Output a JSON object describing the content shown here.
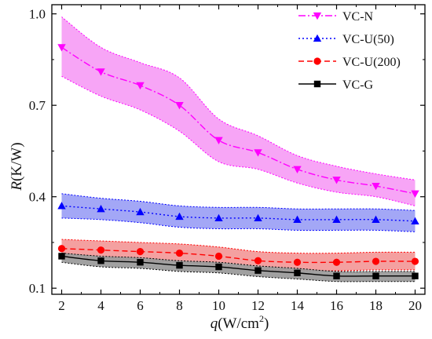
{
  "chart_data": {
    "type": "line",
    "x": [
      2,
      4,
      6,
      8,
      10,
      12,
      14,
      16,
      18,
      20
    ],
    "xlim": [
      1.5,
      20.5
    ],
    "ylim": [
      0.08,
      1.03
    ],
    "xticks": [
      2,
      4,
      6,
      8,
      10,
      12,
      14,
      16,
      18,
      20
    ],
    "yticks": [
      0.1,
      0.4,
      0.7,
      1.0
    ],
    "ytick_labels": [
      "0.1",
      "0.4",
      "0.7",
      "1.0"
    ],
    "xlabel": {
      "var": "q",
      "unit_pre": "(W/cm",
      "sup": "2",
      "unit_post": ")"
    },
    "ylabel": {
      "var": "R",
      "unit": "(K/W)"
    },
    "grid": false,
    "legend_position": "top-right",
    "series": [
      {
        "name": "VC-N",
        "color": "#ff00ff",
        "marker": "triangle-down",
        "line": "dash-dot",
        "values": [
          0.89,
          0.81,
          0.765,
          0.7,
          0.585,
          0.545,
          0.49,
          0.455,
          0.435,
          0.41
        ],
        "band_upper": [
          0.99,
          0.89,
          0.84,
          0.79,
          0.655,
          0.6,
          0.535,
          0.5,
          0.475,
          0.455
        ],
        "band_lower": [
          0.795,
          0.73,
          0.685,
          0.615,
          0.515,
          0.49,
          0.445,
          0.415,
          0.4,
          0.37
        ],
        "band_fill": "#f7a0f5"
      },
      {
        "name": "VC-U(50)",
        "color": "#0000ff",
        "marker": "triangle-up",
        "line": "dotted",
        "values": [
          0.37,
          0.36,
          0.35,
          0.335,
          0.33,
          0.33,
          0.325,
          0.325,
          0.325,
          0.32
        ],
        "band_upper": [
          0.41,
          0.395,
          0.385,
          0.37,
          0.365,
          0.365,
          0.36,
          0.36,
          0.36,
          0.355
        ],
        "band_lower": [
          0.33,
          0.325,
          0.315,
          0.3,
          0.295,
          0.295,
          0.29,
          0.29,
          0.29,
          0.285
        ],
        "band_fill": "#9ea2f5"
      },
      {
        "name": "VC-U(200)",
        "color": "#ff0000",
        "marker": "circle",
        "line": "dashed",
        "values": [
          0.23,
          0.225,
          0.22,
          0.215,
          0.205,
          0.19,
          0.185,
          0.185,
          0.188,
          0.188
        ],
        "band_upper": [
          0.26,
          0.255,
          0.25,
          0.245,
          0.235,
          0.22,
          0.215,
          0.215,
          0.218,
          0.218
        ],
        "band_lower": [
          0.2,
          0.195,
          0.19,
          0.185,
          0.175,
          0.162,
          0.157,
          0.157,
          0.16,
          0.16
        ],
        "band_fill": "#f39b9b"
      },
      {
        "name": "VC-G",
        "color": "#000000",
        "marker": "square",
        "line": "solid",
        "values": [
          0.205,
          0.19,
          0.185,
          0.175,
          0.17,
          0.158,
          0.15,
          0.14,
          0.14,
          0.14
        ],
        "band_upper": [
          0.215,
          0.205,
          0.2,
          0.19,
          0.185,
          0.173,
          0.165,
          0.155,
          0.155,
          0.155
        ],
        "band_lower": [
          0.185,
          0.17,
          0.165,
          0.155,
          0.15,
          0.138,
          0.13,
          0.122,
          0.122,
          0.122
        ],
        "band_fill": "#9c9c9c"
      }
    ]
  }
}
